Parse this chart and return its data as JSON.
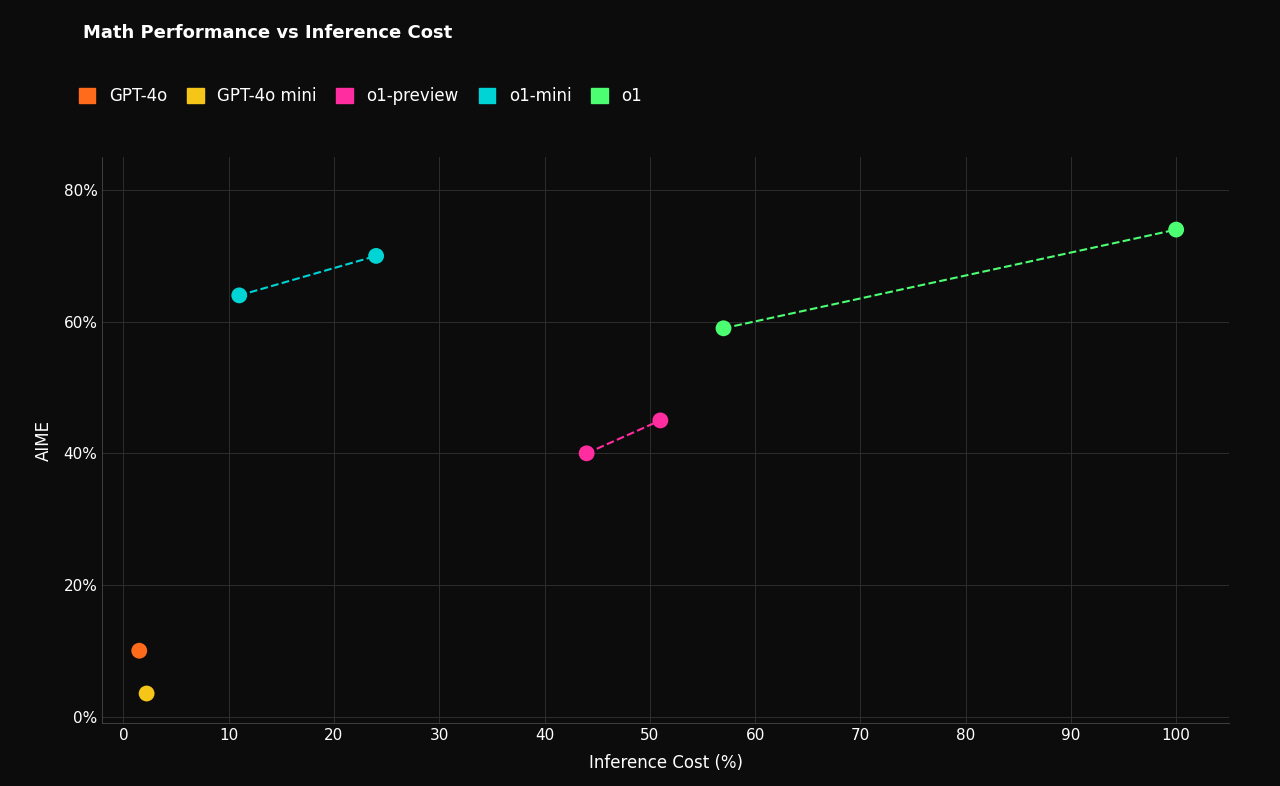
{
  "title": "Math Performance vs Inference Cost",
  "xlabel": "Inference Cost (%)",
  "ylabel": "AIME",
  "background_color": "#0c0c0c",
  "text_color": "#ffffff",
  "grid_color": "#2e2e2e",
  "xlim": [
    -2,
    105
  ],
  "ylim": [
    -0.01,
    0.85
  ],
  "xticks": [
    0,
    10,
    20,
    30,
    40,
    50,
    60,
    70,
    80,
    90,
    100
  ],
  "yticks": [
    0.0,
    0.2,
    0.4,
    0.6,
    0.8
  ],
  "series": [
    {
      "name": "GPT-4o",
      "color": "#ff6b1a",
      "points": [
        [
          1.5,
          0.1
        ]
      ],
      "connected": false
    },
    {
      "name": "GPT-4o mini",
      "color": "#f5c518",
      "points": [
        [
          2.2,
          0.035
        ]
      ],
      "connected": false
    },
    {
      "name": "o1-preview",
      "color": "#ff2da0",
      "points": [
        [
          44,
          0.4
        ],
        [
          51,
          0.45
        ]
      ],
      "connected": true
    },
    {
      "name": "o1-mini",
      "color": "#00d4d4",
      "points": [
        [
          11,
          0.64
        ],
        [
          24,
          0.7
        ]
      ],
      "connected": true
    },
    {
      "name": "o1",
      "color": "#4cff72",
      "points": [
        [
          57,
          0.59
        ],
        [
          100,
          0.74
        ]
      ],
      "connected": true
    }
  ],
  "marker_size": 130,
  "title_fontsize": 13,
  "label_fontsize": 12,
  "tick_fontsize": 11,
  "legend_fontsize": 12
}
